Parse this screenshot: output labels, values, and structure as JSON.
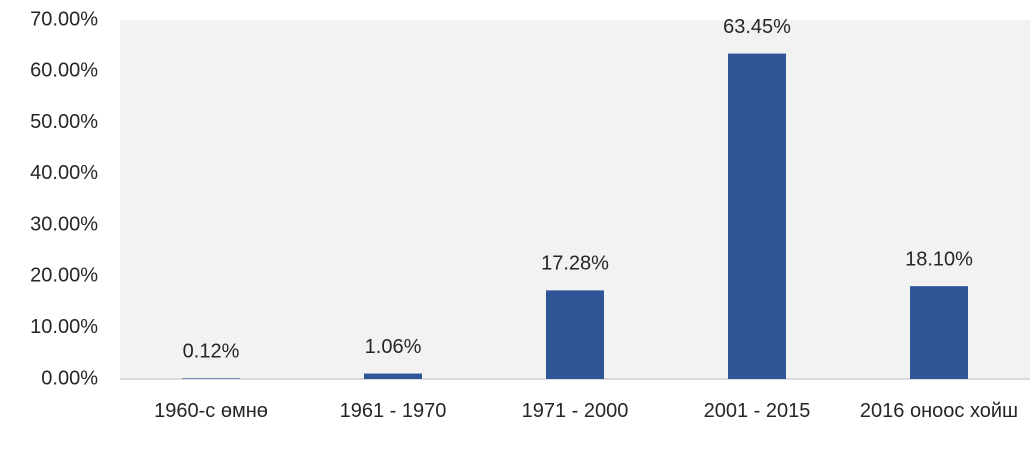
{
  "chart_data": {
    "type": "bar",
    "categories": [
      "1960-с өмнө",
      "1961 - 1970",
      "1971 - 2000",
      "2001 - 2015",
      "2016 оноос хойш"
    ],
    "values": [
      0.12,
      1.06,
      17.28,
      63.45,
      18.1
    ],
    "value_labels": [
      "0.12%",
      "1.06%",
      "17.28%",
      "63.45%",
      "18.10%"
    ],
    "color": "#2f5597",
    "ylim": [
      0,
      70
    ],
    "yticks": [
      {
        "value": 0,
        "label": "0.00%"
      },
      {
        "value": 10,
        "label": "10.00%"
      },
      {
        "value": 20,
        "label": "20.00%"
      },
      {
        "value": 30,
        "label": "30.00%"
      },
      {
        "value": 40,
        "label": "40.00%"
      },
      {
        "value": 50,
        "label": "50.00%"
      },
      {
        "value": 60,
        "label": "60.00%"
      },
      {
        "value": 70,
        "label": "70.00%"
      }
    ],
    "grid": false
  }
}
